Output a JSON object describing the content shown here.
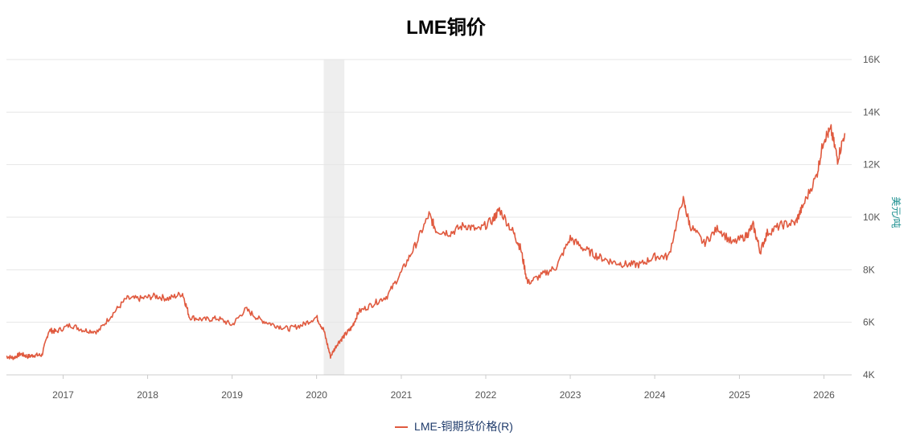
{
  "chart_data": {
    "type": "line",
    "title": "LME铜价",
    "ylabel": "美元/吨",
    "y_axis_side": "right",
    "ylim": [
      4000,
      16000
    ],
    "yticks": [
      4000,
      6000,
      8000,
      10000,
      12000,
      14000,
      16000
    ],
    "ytick_labels": [
      "4K",
      "6K",
      "8K",
      "10K",
      "12K",
      "14K",
      "16K"
    ],
    "xlim": [
      "2016-05-01",
      "2026-05-01"
    ],
    "xtick_labels": [
      "2017",
      "2018",
      "2019",
      "2020",
      "2021",
      "2022",
      "2023",
      "2024",
      "2025",
      "2026"
    ],
    "grid": true,
    "legend_position": "bottom",
    "color": "#e05a3f",
    "shaded_range": [
      "2020-02-01",
      "2020-04-30"
    ],
    "series": [
      {
        "name": "LME-铜期货价格(R)",
        "x": [
          "2016-05",
          "2016-06",
          "2016-07",
          "2016-08",
          "2016-09",
          "2016-10",
          "2016-11",
          "2016-12",
          "2017-02",
          "2017-04",
          "2017-06",
          "2017-08",
          "2017-10",
          "2017-12",
          "2018-02",
          "2018-04",
          "2018-06",
          "2018-07",
          "2018-09",
          "2018-11",
          "2019-01",
          "2019-03",
          "2019-05",
          "2019-07",
          "2019-09",
          "2019-11",
          "2020-01",
          "2020-02",
          "2020-03",
          "2020-04",
          "2020-05",
          "2020-06",
          "2020-07",
          "2020-09",
          "2020-11",
          "2021-01",
          "2021-03",
          "2021-05",
          "2021-06",
          "2021-08",
          "2021-10",
          "2021-12",
          "2022-02",
          "2022-03",
          "2022-05",
          "2022-06",
          "2022-07",
          "2022-09",
          "2022-11",
          "2023-01",
          "2023-03",
          "2023-05",
          "2023-07",
          "2023-09",
          "2023-11",
          "2024-01",
          "2024-03",
          "2024-05",
          "2024-06",
          "2024-08",
          "2024-10",
          "2024-12",
          "2025-02",
          "2025-03",
          "2025-04",
          "2025-05",
          "2025-07",
          "2025-09",
          "2025-10",
          "2025-12",
          "2026-01",
          "2026-02",
          "2026-03",
          "2026-04"
        ],
        "y": [
          4700,
          4650,
          4800,
          4700,
          4750,
          4750,
          5700,
          5650,
          5900,
          5700,
          5650,
          6300,
          6900,
          6900,
          7000,
          6900,
          7100,
          6200,
          6100,
          6150,
          5900,
          6500,
          6100,
          5900,
          5750,
          5900,
          6200,
          5700,
          4700,
          5200,
          5500,
          5800,
          6400,
          6700,
          7000,
          7900,
          8900,
          10100,
          9500,
          9400,
          9700,
          9500,
          9900,
          10300,
          9400,
          8800,
          7500,
          7800,
          8100,
          9200,
          8800,
          8500,
          8300,
          8200,
          8200,
          8500,
          8500,
          10700,
          9700,
          9000,
          9600,
          9000,
          9300,
          9700,
          8700,
          9400,
          9700,
          9800,
          10400,
          11600,
          13000,
          13300,
          12200,
          13200
        ]
      }
    ]
  }
}
